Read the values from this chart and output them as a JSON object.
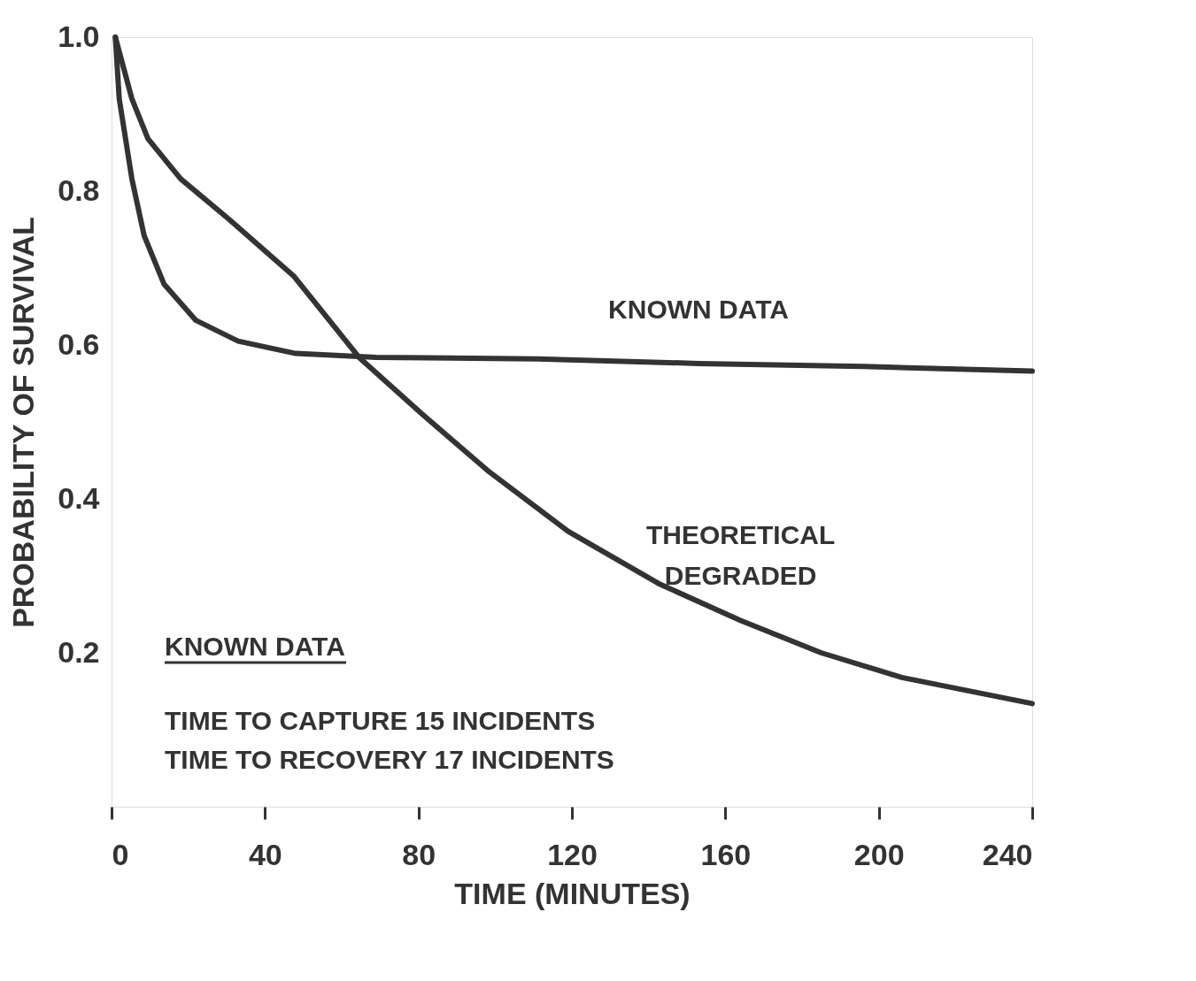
{
  "chart_data": {
    "type": "line",
    "xlabel": "TIME (MINUTES)",
    "ylabel": "PROBABILITY OF SURVIVAL",
    "xlim": [
      0,
      240
    ],
    "ylim": [
      0,
      1
    ],
    "xticks": [
      0,
      40,
      80,
      120,
      160,
      200,
      240
    ],
    "yticks": [
      0.2,
      0.4,
      0.6,
      0.8,
      {
        "value": 1,
        "label": "1.0"
      }
    ],
    "grid": false,
    "legend": false,
    "marker": "none",
    "line_style": "solid",
    "series": [
      {
        "name": "KNOWN DATA",
        "color": "#333333",
        "x": [
          1,
          2,
          5.3,
          8.5,
          13.7,
          22,
          33,
          48,
          69,
          111,
          153,
          196,
          240
        ],
        "values": [
          1.0,
          0.92,
          0.816,
          0.742,
          0.679,
          0.632,
          0.605,
          0.589,
          0.584,
          0.582,
          0.576,
          0.572,
          0.566
        ]
      },
      {
        "name": "THEORETICAL DEGRADED",
        "color": "#333333",
        "x": [
          1,
          5.3,
          9.5,
          18,
          30.7,
          47.6,
          64.5,
          81,
          98,
          119,
          143,
          164,
          185,
          206,
          240
        ],
        "values": [
          1.0,
          0.92,
          0.868,
          0.816,
          0.763,
          0.689,
          0.584,
          0.51,
          0.437,
          0.358,
          0.289,
          0.242,
          0.2,
          0.168,
          0.134
        ]
      }
    ],
    "annotations": [
      "KNOWN DATA",
      "TIME TO CAPTURE   15  INCIDENTS",
      "TIME TO RECOVERY  17  INCIDENTS"
    ]
  }
}
